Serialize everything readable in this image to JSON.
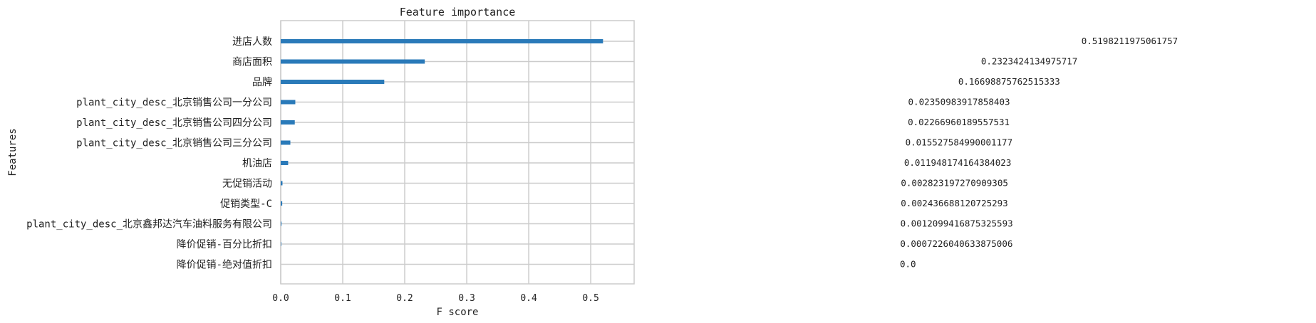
{
  "chart_data": {
    "type": "bar",
    "orientation": "horizontal",
    "title": "Feature importance",
    "xlabel": "F score",
    "ylabel": "Features",
    "xlim": [
      0.0,
      0.57
    ],
    "xticks": [
      "0.0",
      "0.1",
      "0.2",
      "0.3",
      "0.4",
      "0.5"
    ],
    "grid": true,
    "bar_color": "#2a7ab9",
    "categories": [
      "进店人数",
      "商店面积",
      "品牌",
      "plant_city_desc_北京销售公司一分公司",
      "plant_city_desc_北京销售公司四分公司",
      "plant_city_desc_北京销售公司三分公司",
      "机油店",
      "无促销活动",
      "促销类型-C",
      "plant_city_desc_北京鑫邦达汽车油料服务有限公司",
      "降价促销-百分比折扣",
      "降价促销-绝对值折扣"
    ],
    "values": [
      0.5198211975061757,
      0.2323424134975717,
      0.16698875762515333,
      0.02350983917858403,
      0.02266960189557531,
      0.015527584990001177,
      0.011948174164384023,
      0.002823197270909305,
      0.002436688120725293,
      0.0012099416875325593,
      0.0007226040633875006,
      0.0
    ],
    "value_labels": [
      "0.5198211975061757",
      "0.2323424134975717",
      "0.16698875762515333",
      "0.02350983917858403",
      "0.02266960189557531",
      "0.015527584990001177",
      "0.011948174164384023",
      "0.002823197270909305",
      "0.002436688120725293",
      "0.0012099416875325593",
      "0.0007226040633875006",
      "0.0"
    ]
  }
}
